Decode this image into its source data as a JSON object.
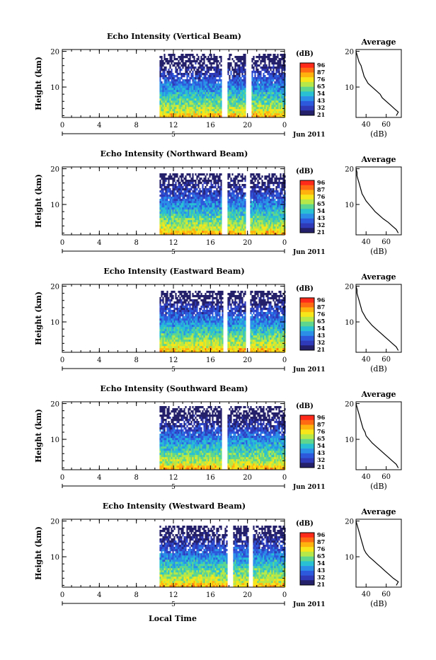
{
  "common": {
    "xlabel": "Local Time",
    "ylabel": "Height (km)",
    "date_label": "Jun 2011",
    "day_marker": "5",
    "colorbar_unit": "(dB)",
    "colorbar_ticks": [
      "96",
      "87",
      "76",
      "65",
      "54",
      "43",
      "32",
      "21"
    ],
    "colorbar_colors": [
      "#ff2a1a",
      "#ff6a12",
      "#ffb20e",
      "#f6e61a",
      "#b6e84a",
      "#5fd68d",
      "#28c0d2",
      "#2b8fe8",
      "#2d59dc",
      "#2f3ab8",
      "#25206a"
    ],
    "x_ticks": [
      "0",
      "4",
      "8",
      "12",
      "16",
      "20",
      "0"
    ],
    "y_ticks": [
      "20",
      "10"
    ],
    "avg_title": "Average",
    "avg_xlabel": "(dB)",
    "avg_x_ticks": [
      "40",
      "60"
    ],
    "avg_y_ticks": [
      "20",
      "10"
    ]
  },
  "chart_data": [
    {
      "type": "heatmap",
      "title": "Echo Intensity (Vertical Beam)",
      "xlim": [
        0,
        24
      ],
      "ylim": [
        1.5,
        20.5
      ],
      "data_start_hour": 10.5,
      "data_end_hour": 24,
      "gaps_hours": [
        [
          17.2,
          17.8
        ],
        [
          19.8,
          20.3
        ]
      ],
      "clim": [
        21,
        96
      ],
      "top_height_km": 19.8,
      "avg_profile": {
        "xlim": [
          30,
          75
        ],
        "height": [
          2,
          3,
          4,
          5,
          6,
          7,
          8,
          9,
          10,
          11,
          12,
          13,
          14,
          15,
          16,
          17,
          18,
          19,
          20
        ],
        "db": [
          70,
          72,
          68,
          64,
          60,
          56,
          54,
          50,
          46,
          42,
          40,
          38,
          37,
          36,
          35,
          33,
          32,
          31,
          30
        ]
      }
    },
    {
      "type": "heatmap",
      "title": "Echo Intensity (Northward Beam)",
      "xlim": [
        0,
        24
      ],
      "ylim": [
        1.5,
        20.5
      ],
      "data_start_hour": 10.5,
      "data_end_hour": 24,
      "gaps_hours": [
        [
          17.1,
          17.7
        ],
        [
          19.8,
          20.2
        ]
      ],
      "clim": [
        21,
        96
      ],
      "top_height_km": 19,
      "avg_profile": {
        "xlim": [
          30,
          75
        ],
        "height": [
          2,
          3,
          4,
          5,
          6,
          7,
          8,
          9,
          10,
          11,
          12,
          13,
          14,
          15,
          16,
          17,
          18,
          19,
          20
        ],
        "db": [
          72,
          70,
          66,
          62,
          57,
          53,
          49,
          46,
          43,
          40,
          38,
          36,
          35,
          34,
          33,
          32,
          31,
          31,
          30
        ]
      }
    },
    {
      "type": "heatmap",
      "title": "Echo Intensity (Eastward Beam)",
      "xlim": [
        0,
        24
      ],
      "ylim": [
        1.5,
        20.5
      ],
      "data_start_hour": 10.5,
      "data_end_hour": 24,
      "gaps_hours": [
        [
          17.3,
          17.8
        ],
        [
          19.8,
          20.2
        ]
      ],
      "clim": [
        21,
        96
      ],
      "top_height_km": 19,
      "avg_profile": {
        "xlim": [
          30,
          75
        ],
        "height": [
          2,
          3,
          4,
          5,
          6,
          7,
          8,
          9,
          10,
          11,
          12,
          13,
          14,
          15,
          16,
          17,
          18,
          19,
          20
        ],
        "db": [
          72,
          70,
          66,
          62,
          58,
          54,
          50,
          46,
          43,
          40,
          38,
          36,
          35,
          34,
          33,
          32,
          31,
          31,
          30
        ]
      }
    },
    {
      "type": "heatmap",
      "title": "Echo Intensity (Southward Beam)",
      "xlim": [
        0,
        24
      ],
      "ylim": [
        1.5,
        20.5
      ],
      "data_start_hour": 10.5,
      "data_end_hour": 24,
      "gaps_hours": [
        [
          17.2,
          17.7
        ]
      ],
      "clim": [
        21,
        96
      ],
      "top_height_km": 19.5,
      "avg_profile": {
        "xlim": [
          30,
          75
        ],
        "height": [
          2,
          3,
          4,
          5,
          6,
          7,
          8,
          9,
          10,
          11,
          12,
          13,
          14,
          15,
          16,
          17,
          18,
          19,
          20
        ],
        "db": [
          72,
          70,
          66,
          62,
          58,
          54,
          50,
          46,
          43,
          40,
          39,
          37,
          36,
          35,
          34,
          33,
          32,
          31,
          30
        ]
      }
    },
    {
      "type": "heatmap",
      "title": "Echo Intensity (Westward Beam)",
      "xlim": [
        0,
        24
      ],
      "ylim": [
        1.5,
        20.5
      ],
      "data_start_hour": 10.5,
      "data_end_hour": 24,
      "gaps_hours": [
        [
          17.8,
          18.3
        ],
        [
          20.0,
          20.5
        ]
      ],
      "clim": [
        21,
        96
      ],
      "top_height_km": 19,
      "avg_profile": {
        "xlim": [
          30,
          75
        ],
        "height": [
          2,
          3,
          4,
          5,
          6,
          7,
          8,
          9,
          10,
          11,
          12,
          13,
          14,
          15,
          16,
          17,
          18,
          19,
          20
        ],
        "db": [
          70,
          72,
          67,
          63,
          59,
          55,
          51,
          47,
          43,
          40,
          38,
          37,
          36,
          35,
          34,
          33,
          32,
          31,
          30
        ]
      }
    }
  ]
}
